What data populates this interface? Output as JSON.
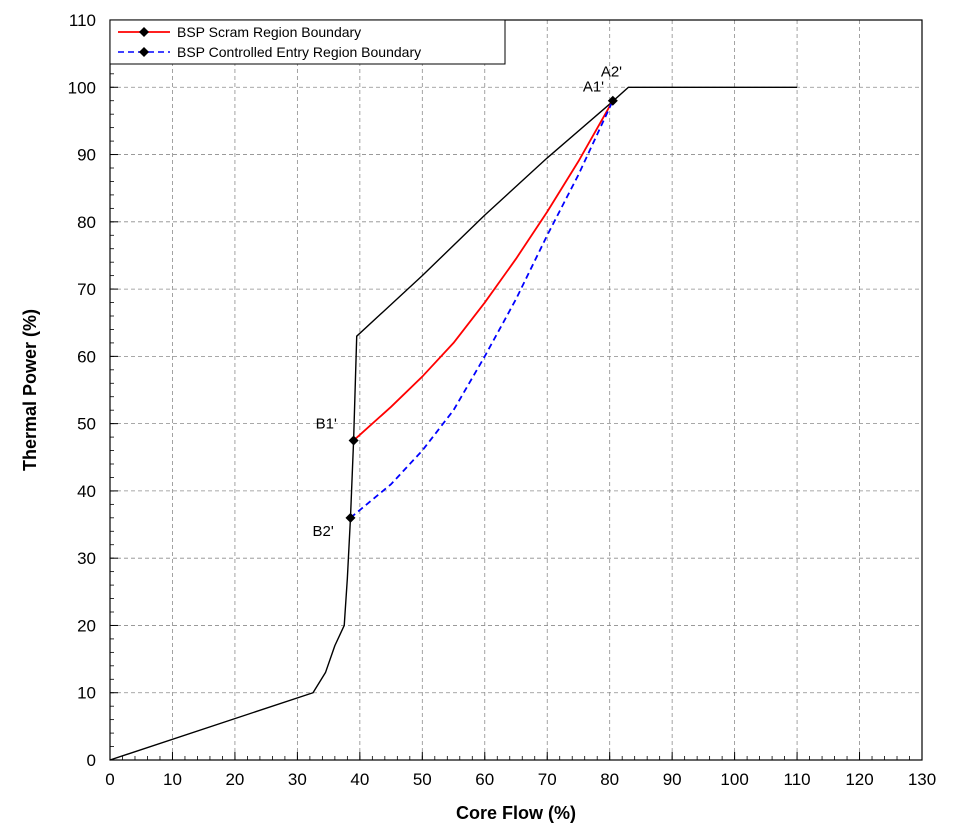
{
  "chart_data": {
    "type": "line",
    "title": "",
    "xlabel": "Core Flow (%)",
    "ylabel": "Thermal Power (%)",
    "xlim": [
      0,
      130
    ],
    "ylim": [
      0,
      110
    ],
    "xticks": [
      0,
      10,
      20,
      30,
      40,
      50,
      60,
      70,
      80,
      90,
      100,
      110,
      120,
      130
    ],
    "yticks": [
      0,
      10,
      20,
      30,
      40,
      50,
      60,
      70,
      80,
      90,
      100,
      110
    ],
    "grid": true,
    "legend_position": "top-left",
    "legend": [
      {
        "label": "BSP Scram Region Boundary",
        "color": "#ff0000",
        "dash": "solid"
      },
      {
        "label": "BSP Controlled Entry Region Boundary",
        "color": "#0000ff",
        "dash": "dashed"
      }
    ],
    "series": [
      {
        "key": "map",
        "color": "#000000",
        "dash": "solid",
        "markers": false,
        "points": [
          [
            0,
            0
          ],
          [
            32.5,
            10
          ],
          [
            34.5,
            13
          ],
          [
            36,
            17
          ],
          [
            37.5,
            20
          ],
          [
            38,
            27
          ],
          [
            38.5,
            36
          ],
          [
            39,
            47.5
          ],
          [
            39.5,
            63
          ],
          [
            50,
            72
          ],
          [
            60,
            81
          ],
          [
            70,
            89.5
          ],
          [
            80,
            97.5
          ],
          [
            83,
            100
          ],
          [
            110,
            100
          ]
        ]
      },
      {
        "key": "scram",
        "name": "BSP Scram Region Boundary",
        "color": "#ff0000",
        "dash": "solid",
        "markers": false,
        "points": [
          [
            39,
            47.5
          ],
          [
            45,
            52.5
          ],
          [
            50,
            57
          ],
          [
            55,
            62
          ],
          [
            60,
            68
          ],
          [
            65,
            74.5
          ],
          [
            70,
            81.5
          ],
          [
            75,
            89
          ],
          [
            80.5,
            98
          ]
        ]
      },
      {
        "key": "controlled",
        "name": "BSP Controlled Entry Region Boundary",
        "color": "#0000ff",
        "dash": "dashed",
        "markers": false,
        "points": [
          [
            38.5,
            36
          ],
          [
            45,
            41
          ],
          [
            50,
            46
          ],
          [
            55,
            52
          ],
          [
            60,
            60
          ],
          [
            65,
            68.5
          ],
          [
            70,
            78
          ],
          [
            75,
            87
          ],
          [
            80.5,
            98
          ]
        ]
      }
    ],
    "points": [
      {
        "label": "B1'",
        "x": 39,
        "y": 47.5
      },
      {
        "label": "B2'",
        "x": 38.5,
        "y": 36
      },
      {
        "label": "A1'",
        "x": 80.5,
        "y": 98
      },
      {
        "label": "A2'",
        "x": 80.5,
        "y": 98
      }
    ]
  }
}
